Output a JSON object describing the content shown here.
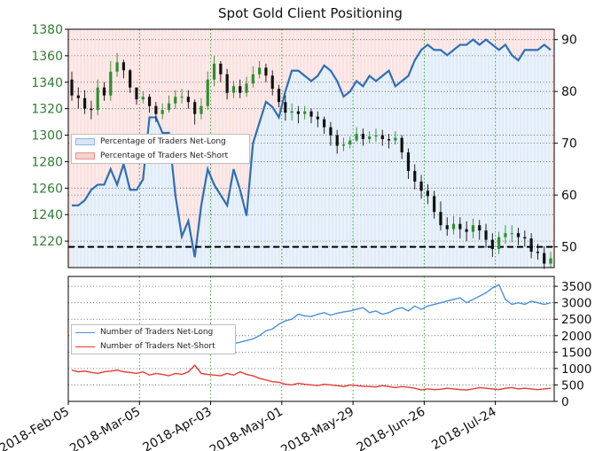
{
  "chart_data": [
    {
      "type": "candlestick+line+area",
      "title": "Spot Gold Client Positioning",
      "x_tick_labels": [
        "2018-Feb-05",
        "2018-Mar-05",
        "2018-Apr-03",
        "2018-May-01",
        "2018-May-29",
        "2018-Jun-26",
        "2018-Jul-24"
      ],
      "left_axis": {
        "ylim": [
          1200,
          1380
        ],
        "ticks": [
          1220,
          1240,
          1260,
          1280,
          1300,
          1320,
          1340,
          1360,
          1380
        ]
      },
      "right_axis": {
        "ylim": [
          46,
          92
        ],
        "ticks": [
          50,
          60,
          70,
          80,
          90
        ]
      },
      "grid": true,
      "threshold_line": {
        "value": 50,
        "axis": "right",
        "style": "dashed"
      },
      "legend": {
        "placement": "left",
        "entries": [
          {
            "label": "Percentage of Traders Net-Long",
            "color": "#b7d2ee"
          },
          {
            "label": "Percentage of Traders Net-Short",
            "color": "#f6c3bf"
          }
        ]
      },
      "net_long_pct": [
        58,
        58,
        59,
        61,
        62,
        62,
        65,
        62,
        66,
        61,
        61,
        63,
        75,
        75,
        72,
        72,
        60,
        52,
        55,
        48,
        58,
        65,
        62,
        60,
        58,
        65,
        61,
        56,
        70,
        74,
        78,
        77,
        75,
        80,
        84,
        84,
        83,
        82,
        83,
        85,
        84,
        82,
        79,
        80,
        82,
        81,
        83,
        82,
        83,
        84,
        81,
        82,
        83,
        86,
        88,
        89,
        88,
        88,
        87,
        88,
        89,
        89,
        90,
        89,
        90,
        89,
        88,
        89,
        87,
        86,
        88,
        88,
        88,
        89,
        88
      ],
      "ohlc_open": [
        1342,
        1330,
        1328,
        1320,
        1319,
        1336,
        1330,
        1348,
        1355,
        1349,
        1336,
        1327,
        1329,
        1322,
        1316,
        1319,
        1324,
        1329,
        1329,
        1325,
        1316,
        1322,
        1342,
        1354,
        1346,
        1332,
        1337,
        1332,
        1339,
        1346,
        1351,
        1345,
        1335,
        1325,
        1317,
        1318,
        1316,
        1318,
        1314,
        1312,
        1306,
        1300,
        1292,
        1293,
        1296,
        1301,
        1297,
        1299,
        1300,
        1297,
        1296,
        1298,
        1287,
        1273,
        1265,
        1258,
        1254,
        1242,
        1232,
        1229,
        1233,
        1229,
        1227,
        1232,
        1228,
        1221,
        1214,
        1223,
        1226,
        1226,
        1223,
        1222,
        1212,
        1211,
        1203
      ],
      "ohlc_close": [
        1330,
        1328,
        1320,
        1319,
        1336,
        1330,
        1348,
        1355,
        1349,
        1336,
        1327,
        1329,
        1322,
        1316,
        1319,
        1324,
        1329,
        1329,
        1325,
        1316,
        1322,
        1342,
        1354,
        1346,
        1332,
        1337,
        1332,
        1339,
        1346,
        1351,
        1345,
        1335,
        1325,
        1317,
        1318,
        1316,
        1318,
        1314,
        1312,
        1306,
        1300,
        1292,
        1293,
        1296,
        1301,
        1297,
        1299,
        1300,
        1297,
        1296,
        1298,
        1287,
        1273,
        1265,
        1258,
        1254,
        1242,
        1232,
        1229,
        1233,
        1229,
        1227,
        1232,
        1228,
        1221,
        1214,
        1223,
        1226,
        1226,
        1223,
        1222,
        1212,
        1211,
        1203,
        1207
      ],
      "ohlc_high": [
        1348,
        1336,
        1334,
        1326,
        1342,
        1340,
        1356,
        1362,
        1357,
        1350,
        1336,
        1333,
        1331,
        1325,
        1324,
        1330,
        1334,
        1335,
        1334,
        1327,
        1328,
        1348,
        1360,
        1356,
        1350,
        1341,
        1342,
        1344,
        1352,
        1356,
        1354,
        1349,
        1338,
        1330,
        1324,
        1322,
        1322,
        1320,
        1318,
        1314,
        1310,
        1304,
        1298,
        1299,
        1306,
        1305,
        1303,
        1305,
        1304,
        1301,
        1303,
        1300,
        1290,
        1278,
        1270,
        1263,
        1258,
        1250,
        1238,
        1239,
        1238,
        1235,
        1237,
        1236,
        1233,
        1226,
        1227,
        1232,
        1232,
        1230,
        1228,
        1226,
        1218,
        1216,
        1212
      ],
      "ohlc_low": [
        1326,
        1320,
        1316,
        1312,
        1315,
        1326,
        1326,
        1344,
        1343,
        1332,
        1323,
        1324,
        1317,
        1310,
        1312,
        1317,
        1320,
        1324,
        1320,
        1308,
        1312,
        1319,
        1337,
        1340,
        1327,
        1328,
        1328,
        1329,
        1336,
        1343,
        1340,
        1330,
        1321,
        1311,
        1311,
        1309,
        1312,
        1309,
        1306,
        1301,
        1292,
        1286,
        1288,
        1290,
        1295,
        1292,
        1294,
        1295,
        1292,
        1290,
        1293,
        1282,
        1267,
        1259,
        1252,
        1248,
        1237,
        1228,
        1224,
        1225,
        1222,
        1220,
        1222,
        1221,
        1215,
        1208,
        1210,
        1218,
        1219,
        1217,
        1216,
        1207,
        1206,
        1199,
        1200
      ]
    },
    {
      "type": "line",
      "legend": {
        "placement": "left",
        "entries": [
          {
            "label": "Number of Traders Net-Long",
            "color": "#4a90d9"
          },
          {
            "label": "Number of Traders Net-Short",
            "color": "#e53935"
          }
        ]
      },
      "ylim": [
        0,
        3800
      ],
      "y_ticks": [
        0,
        500,
        1000,
        1500,
        2000,
        2500,
        3000,
        3500
      ],
      "grid": true,
      "series": [
        {
          "name": "Number of Traders Net-Long",
          "color": "#4a90d9",
          "values": [
            1500,
            1480,
            1520,
            1560,
            1500,
            1480,
            1520,
            1500,
            1530,
            1510,
            1560,
            1620,
            1580,
            1600,
            1620,
            1700,
            1650,
            1620,
            1700,
            1680,
            1650,
            1700,
            1750,
            1680,
            1720,
            1760,
            1800,
            1850,
            1900,
            2000,
            2150,
            2200,
            2350,
            2450,
            2500,
            2650,
            2600,
            2580,
            2650,
            2700,
            2620,
            2680,
            2720,
            2750,
            2800,
            2850,
            2700,
            2750,
            2650,
            2700,
            2800,
            2850,
            2750,
            2900,
            2800,
            2900,
            2950,
            3000,
            3050,
            3100,
            3150,
            3000,
            3100,
            3200,
            3300,
            3450,
            3550,
            3100,
            2950,
            3000,
            2950,
            3050,
            3000,
            2950,
            3000
          ]
        },
        {
          "name": "Number of Traders Net-Short",
          "color": "#e53935",
          "values": [
            950,
            900,
            920,
            880,
            850,
            900,
            920,
            950,
            900,
            880,
            850,
            900,
            800,
            850,
            820,
            780,
            850,
            820,
            900,
            1100,
            850,
            820,
            800,
            780,
            850,
            800,
            900,
            820,
            780,
            700,
            650,
            600,
            580,
            520,
            500,
            550,
            520,
            500,
            480,
            520,
            500,
            480,
            450,
            500,
            480,
            460,
            450,
            440,
            480,
            450,
            420,
            450,
            430,
            400,
            350,
            380,
            360,
            370,
            400,
            380,
            360,
            350,
            380,
            420,
            400,
            380,
            360,
            400,
            420,
            380,
            400,
            380,
            360,
            380,
            400
          ]
        }
      ]
    }
  ]
}
